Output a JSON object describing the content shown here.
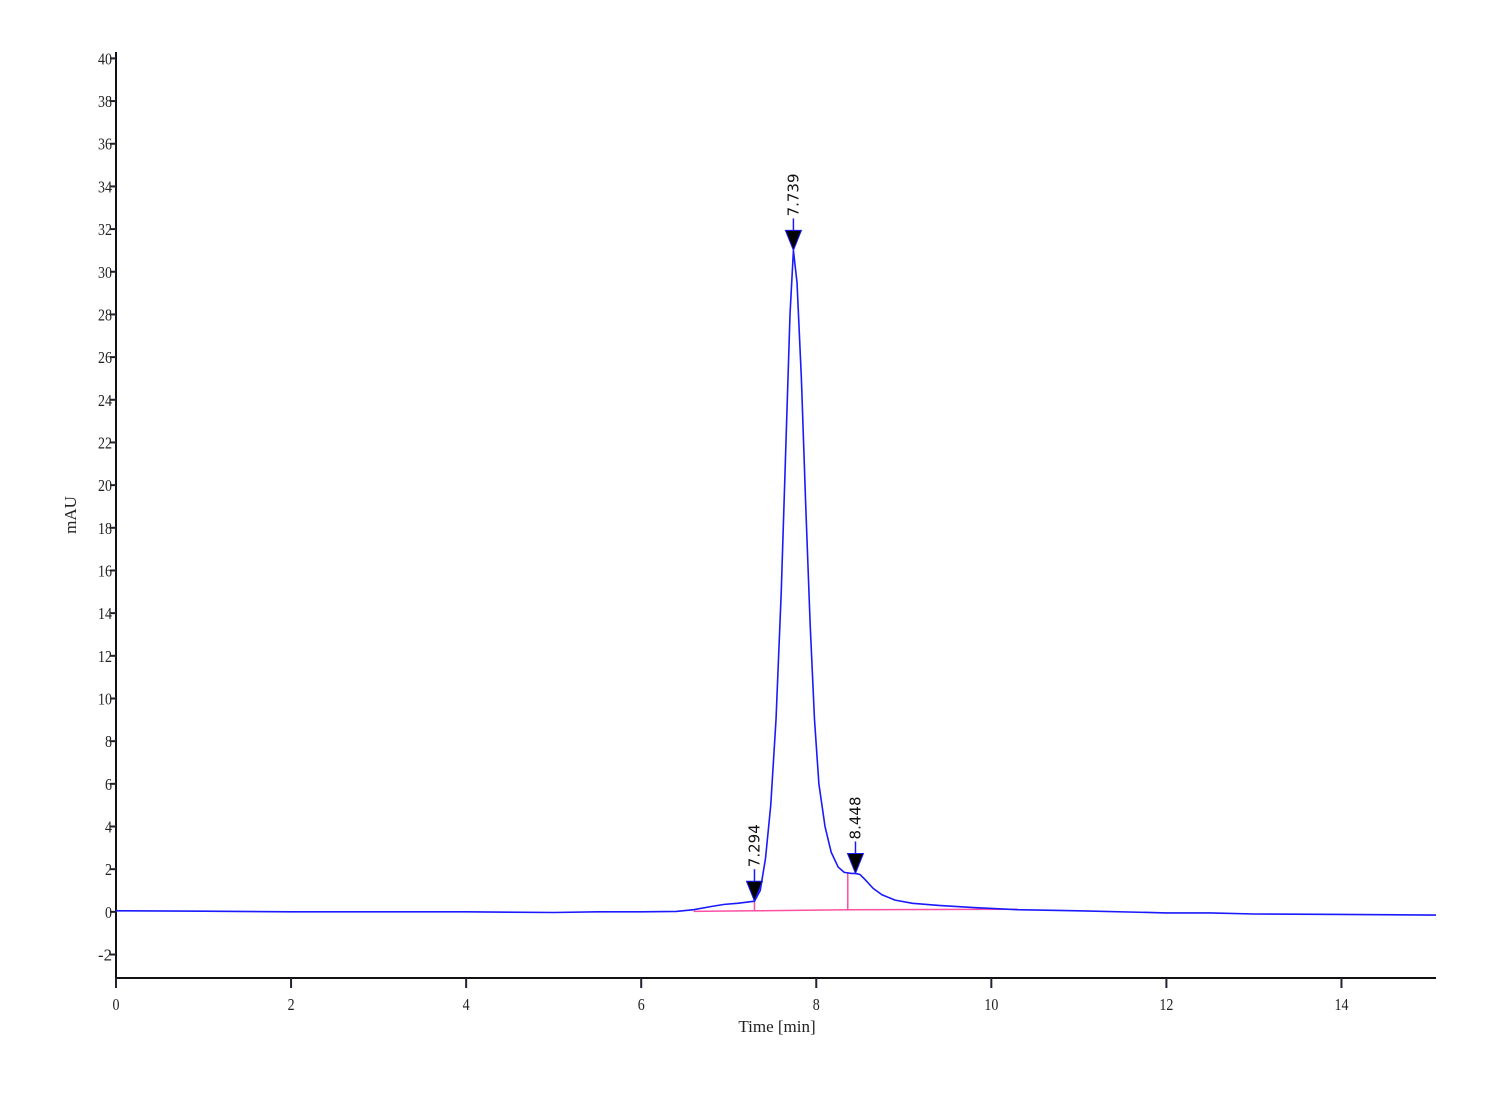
{
  "chart_data": {
    "type": "line",
    "title": "",
    "xlabel": "Time [min]",
    "ylabel": "mAU",
    "xlim": [
      0,
      15.08
    ],
    "ylim": [
      -3.1,
      40.3
    ],
    "xticks": [
      0,
      2,
      4,
      6,
      8,
      10,
      12,
      14
    ],
    "yticks": [
      -2,
      0,
      2,
      4,
      6,
      8,
      10,
      12,
      14,
      16,
      18,
      20,
      22,
      24,
      26,
      28,
      30,
      32,
      34,
      36,
      38,
      40
    ],
    "grid": false,
    "series": [
      {
        "color": "#1a1aff",
        "x": [
          0,
          1,
          2,
          3,
          4,
          5,
          5.5,
          6.0,
          6.4,
          6.6,
          6.8,
          6.95,
          7.1,
          7.294,
          7.36,
          7.42,
          7.48,
          7.54,
          7.6,
          7.65,
          7.7,
          7.739,
          7.78,
          7.83,
          7.88,
          7.93,
          7.98,
          8.03,
          8.1,
          8.17,
          8.25,
          8.32,
          8.4,
          8.448,
          8.5,
          8.56,
          8.65,
          8.75,
          8.9,
          9.1,
          9.4,
          9.8,
          10.3,
          11,
          12,
          12.5,
          13,
          14,
          15.08
        ],
        "y": [
          0.05,
          0.03,
          0.0,
          0.0,
          0.0,
          -0.03,
          0.0,
          0.0,
          0.02,
          0.1,
          0.25,
          0.35,
          0.4,
          0.5,
          1.0,
          2.5,
          5.0,
          9.0,
          15.0,
          21.5,
          28.0,
          31.0,
          29.5,
          25.0,
          19.0,
          13.5,
          9.0,
          6.0,
          4.0,
          2.8,
          2.1,
          1.85,
          1.8,
          1.8,
          1.75,
          1.5,
          1.1,
          0.8,
          0.55,
          0.4,
          0.3,
          0.2,
          0.1,
          0.05,
          -0.05,
          -0.05,
          -0.1,
          -0.12,
          -0.15
        ]
      }
    ],
    "baselines": [
      {
        "color": "#ff4fa3",
        "x": [
          6.6,
          7.294,
          8.36,
          10.3
        ],
        "y": [
          0.02,
          0.05,
          0.1,
          0.12
        ]
      }
    ],
    "drop_lines": [
      {
        "x": 7.294,
        "from": 0.05,
        "to": 0.5
      },
      {
        "x": 8.36,
        "from": 0.1,
        "to": 1.8
      }
    ],
    "peaks": [
      {
        "label": "7.294",
        "x": 7.294,
        "y": 0.5
      },
      {
        "label": "7.739",
        "x": 7.739,
        "y": 31.0
      },
      {
        "label": "8.448",
        "x": 8.448,
        "y": 1.8
      }
    ]
  }
}
